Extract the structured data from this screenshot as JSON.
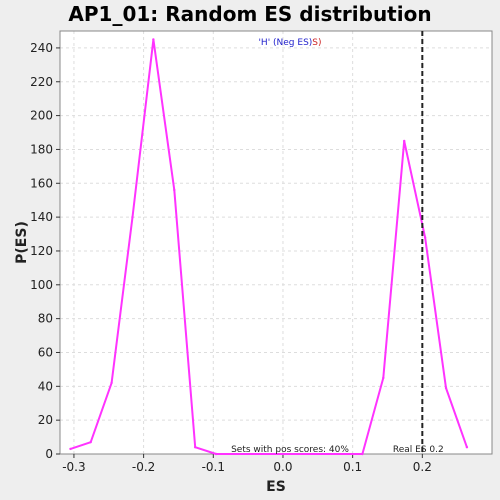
{
  "chart_data": {
    "type": "line",
    "title": "AP1_01: Random ES distribution",
    "xlabel": "ES",
    "ylabel": "P(ES)",
    "xlim": [
      -0.32,
      0.3
    ],
    "ylim": [
      0,
      250
    ],
    "x_ticks": [
      -0.3,
      -0.2,
      -0.1,
      0.0,
      0.1,
      0.2
    ],
    "x_tick_labels": [
      "-0.3",
      "-0.2",
      "-0.1",
      "0.0",
      "0.1",
      "0.2"
    ],
    "y_ticks": [
      0,
      20,
      40,
      60,
      80,
      100,
      120,
      140,
      160,
      180,
      200,
      220,
      240
    ],
    "y_tick_labels": [
      "0",
      "20",
      "40",
      "60",
      "80",
      "100",
      "120",
      "140",
      "160",
      "180",
      "200",
      "220",
      "240"
    ],
    "grid": true,
    "series": [
      {
        "color": "#ff33ff",
        "points": [
          {
            "x": -0.305,
            "y": 3
          },
          {
            "x": -0.276,
            "y": 7
          },
          {
            "x": -0.246,
            "y": 42
          },
          {
            "x": -0.216,
            "y": 140
          },
          {
            "x": -0.186,
            "y": 245
          },
          {
            "x": -0.156,
            "y": 156
          },
          {
            "x": -0.126,
            "y": 4
          },
          {
            "x": -0.096,
            "y": 0
          },
          {
            "x": 0.114,
            "y": 0
          },
          {
            "x": 0.144,
            "y": 45
          },
          {
            "x": 0.174,
            "y": 185
          },
          {
            "x": 0.204,
            "y": 128
          },
          {
            "x": 0.234,
            "y": 39
          },
          {
            "x": 0.264,
            "y": 4
          }
        ]
      }
    ],
    "reference_line": {
      "x": 0.2,
      "label": "Real ES 0.2",
      "color": "#222222"
    },
    "annotations": {
      "legend_parts": [
        {
          "text": "'H' (Neg ES)",
          "color": "#2222cc"
        },
        {
          "text": "S)",
          "color": "#cc2222"
        }
      ],
      "pos_scores": "Sets with pos scores: 40%"
    },
    "colors": {
      "background": "#eeeeee",
      "plot_bg": "#ffffff",
      "grid": "#dddddd",
      "axis": "#333333"
    }
  }
}
